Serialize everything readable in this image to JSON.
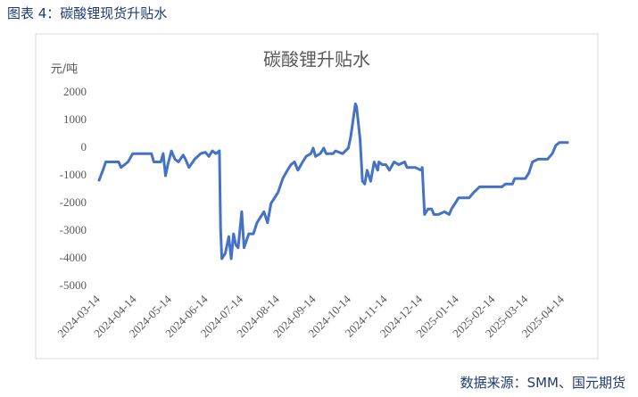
{
  "header": {
    "title": "图表 4：碳酸锂现货升贴水"
  },
  "footer": {
    "source": "数据来源：SMM、国元期货"
  },
  "chart_data": {
    "type": "line",
    "title": "碳酸锂升贴水",
    "y_label": "元/吨",
    "x": [
      "2024-03-14",
      "2024-03-18",
      "2024-03-20",
      "2024-03-31",
      "2024-04-02",
      "2024-04-08",
      "2024-04-12",
      "2024-04-28",
      "2024-04-30",
      "2024-05-06",
      "2024-05-08",
      "2024-05-10",
      "2024-05-12",
      "2024-05-15",
      "2024-05-18",
      "2024-05-21",
      "2024-05-25",
      "2024-05-27",
      "2024-05-30",
      "2024-06-04",
      "2024-06-09",
      "2024-06-13",
      "2024-06-16",
      "2024-06-19",
      "2024-06-22",
      "2024-06-25",
      "2024-06-26",
      "2024-06-27",
      "2024-06-30",
      "2024-07-03",
      "2024-07-05",
      "2024-07-07",
      "2024-07-09",
      "2024-07-11",
      "2024-07-14",
      "2024-07-16",
      "2024-07-20",
      "2024-07-24",
      "2024-07-27",
      "2024-07-30",
      "2024-08-02",
      "2024-08-05",
      "2024-08-08",
      "2024-08-11",
      "2024-08-14",
      "2024-08-18",
      "2024-08-22",
      "2024-08-25",
      "2024-08-28",
      "2024-08-31",
      "2024-09-04",
      "2024-09-07",
      "2024-09-11",
      "2024-09-13",
      "2024-09-15",
      "2024-09-19",
      "2024-09-22",
      "2024-09-24",
      "2024-09-30",
      "2024-10-02",
      "2024-10-08",
      "2024-10-13",
      "2024-10-15",
      "2024-10-19",
      "2024-10-20",
      "2024-10-23",
      "2024-10-25",
      "2024-10-27",
      "2024-10-29",
      "2024-11-01",
      "2024-11-04",
      "2024-11-07",
      "2024-11-08",
      "2024-11-11",
      "2024-11-14",
      "2024-11-17",
      "2024-11-21",
      "2024-11-25",
      "2024-11-30",
      "2024-12-02",
      "2024-12-09",
      "2024-12-14",
      "2024-12-15",
      "2024-12-17",
      "2024-12-20",
      "2024-12-23",
      "2024-12-25",
      "2024-12-29",
      "2025-01-03",
      "2025-01-07",
      "2025-01-09",
      "2025-01-12",
      "2025-01-15",
      "2025-01-24",
      "2025-01-28",
      "2025-02-02",
      "2025-02-21",
      "2025-02-24",
      "2025-03-02",
      "2025-03-04",
      "2025-03-13",
      "2025-03-16",
      "2025-03-19",
      "2025-03-24",
      "2025-04-01",
      "2025-04-05",
      "2025-04-08",
      "2025-04-11",
      "2025-04-19"
    ],
    "series": [
      {
        "name": "升贴水",
        "color": "#4472c4",
        "values": [
          -1200,
          -750,
          -500,
          -500,
          -700,
          -500,
          -200,
          -200,
          -500,
          -500,
          -200,
          -1000,
          -600,
          -100,
          -400,
          -500,
          -250,
          -400,
          -700,
          -400,
          -200,
          -150,
          -300,
          -100,
          -200,
          -100,
          -2900,
          -4000,
          -3800,
          -3200,
          -4000,
          -3100,
          -3500,
          -3600,
          -2300,
          -3600,
          -3100,
          -3100,
          -2700,
          -2500,
          -2300,
          -2700,
          -2000,
          -1800,
          -1600,
          -1100,
          -800,
          -600,
          -500,
          -800,
          -500,
          -300,
          -200,
          0,
          -300,
          -200,
          0,
          -200,
          -200,
          -100,
          -200,
          0,
          400,
          1600,
          1500,
          300,
          -1200,
          -1300,
          -800,
          -1200,
          -500,
          -800,
          -500,
          -600,
          -600,
          -800,
          -500,
          -600,
          -500,
          -700,
          -700,
          -800,
          -700,
          -2400,
          -2200,
          -2200,
          -2400,
          -2400,
          -2300,
          -2400,
          -2200,
          -2000,
          -1800,
          -1800,
          -1600,
          -1400,
          -1400,
          -1300,
          -1300,
          -1100,
          -1100,
          -900,
          -500,
          -400,
          -400,
          -200,
          100,
          200,
          200
        ]
      }
    ],
    "xlim": [
      "2024-03-12",
      "2025-04-21"
    ],
    "xticks": [
      "2024-03-14",
      "2024-04-14",
      "2024-05-14",
      "2024-06-14",
      "2024-07-14",
      "2024-08-14",
      "2024-09-14",
      "2024-10-14",
      "2024-11-14",
      "2024-12-14",
      "2025-01-14",
      "2025-02-14",
      "2025-03-14",
      "2025-04-14"
    ],
    "ylim": [
      -5000,
      2000
    ],
    "yticks": [
      2000,
      1000,
      0,
      -1000,
      -2000,
      -3000,
      -4000,
      -5000
    ],
    "grid": false
  }
}
